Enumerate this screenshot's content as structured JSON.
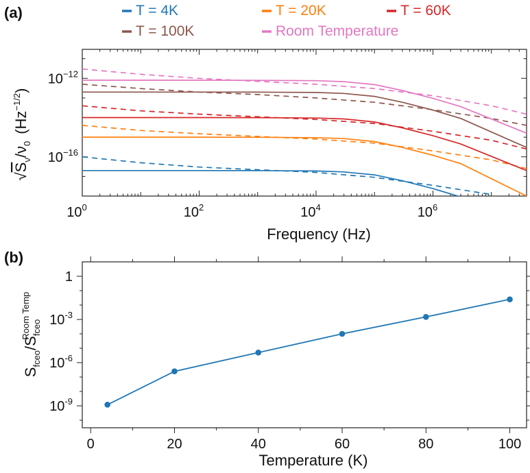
{
  "chart_data": [
    {
      "panel_label": "(a)",
      "type": "line",
      "xscale": "log",
      "yscale": "log",
      "xlim": [
        1,
        40000000
      ],
      "ylim": [
        1e-18,
        3e-11
      ],
      "xticks": [
        1,
        100,
        10000,
        1000000
      ],
      "xtick_labels": [
        {
          "base": "10",
          "exp": "0"
        },
        {
          "base": "10",
          "exp": "2"
        },
        {
          "base": "10",
          "exp": "4"
        },
        {
          "base": "10",
          "exp": "6"
        }
      ],
      "yticks": [
        1e-16,
        1e-12
      ],
      "ytick_labels": [
        {
          "base": "10",
          "exp": "−16"
        },
        {
          "base": "10",
          "exp": "−12"
        }
      ],
      "xlabel": "Frequency (Hz)",
      "ylabel": {
        "prefix": "√",
        "s": "S",
        "s_sub": "ν",
        "slash": "/ν",
        "nu_sub": "0",
        "unit": "(Hz",
        "unit_exp": "−1/2",
        "unit_close": ")"
      },
      "legend_placement": "top",
      "legend": [
        {
          "label": "T = 4K",
          "color": "#1f77b4"
        },
        {
          "label": "T = 20K",
          "color": "#ff7f0e"
        },
        {
          "label": "T = 60K",
          "color": "#d62728"
        },
        {
          "label": "T = 100K",
          "color": "#8c564b"
        },
        {
          "label": "Room Temperature",
          "color": "#e377c2"
        }
      ],
      "series": [
        {
          "color": "#1f77b4",
          "style": "solid",
          "x": [
            1,
            10,
            100,
            1000,
            10000,
            30000,
            100000,
            300000,
            1000000,
            3000000,
            10000000
          ],
          "y": [
            2e-17,
            2e-17,
            2e-17,
            1.98e-17,
            1.9e-17,
            1.7e-17,
            1.2e-17,
            6e-18,
            2.4e-18,
            9e-19,
            3e-19
          ]
        },
        {
          "color": "#1f77b4",
          "style": "dashed",
          "x": [
            1,
            10,
            100,
            1000,
            10000,
            100000,
            1000000,
            10000000
          ],
          "y": [
            1e-16,
            5e-17,
            3e-17,
            2.2e-17,
            1.6e-17,
            9e-18,
            3.5e-18,
            1.2e-18
          ]
        },
        {
          "color": "#ff7f0e",
          "style": "solid",
          "x": [
            1,
            10,
            100,
            1000,
            10000,
            30000,
            100000,
            300000,
            1000000,
            3000000,
            40000000
          ],
          "y": [
            1e-15,
            1e-15,
            1e-15,
            9.9e-16,
            9.5e-16,
            8.5e-16,
            6e-16,
            3e-16,
            1.2e-16,
            4.5e-17,
            1e-18
          ]
        },
        {
          "color": "#ff7f0e",
          "style": "dashed",
          "x": [
            1,
            10,
            100,
            1000,
            10000,
            100000,
            1000000,
            10000000,
            40000000
          ],
          "y": [
            4e-15,
            2.2e-15,
            1.5e-15,
            1.1e-15,
            8e-16,
            5e-16,
            2e-16,
            7e-17,
            2.5e-17
          ]
        },
        {
          "color": "#d62728",
          "style": "solid",
          "x": [
            1,
            10,
            100,
            1000,
            10000,
            30000,
            100000,
            300000,
            1000000,
            3000000,
            40000000
          ],
          "y": [
            1e-14,
            1e-14,
            1e-14,
            9.9e-15,
            9.5e-15,
            8.5e-15,
            6e-15,
            3e-15,
            1.2e-15,
            4.5e-16,
            2e-17
          ]
        },
        {
          "color": "#d62728",
          "style": "dashed",
          "x": [
            1,
            10,
            100,
            1000,
            10000,
            100000,
            1000000,
            10000000,
            40000000
          ],
          "y": [
            4e-14,
            2.2e-14,
            1.5e-14,
            1.1e-14,
            8e-15,
            5e-15,
            2e-15,
            7e-16,
            2.5e-16
          ]
        },
        {
          "color": "#8c564b",
          "style": "solid",
          "x": [
            1,
            10,
            100,
            1000,
            10000,
            30000,
            100000,
            300000,
            1000000,
            3000000,
            40000000
          ],
          "y": [
            2e-13,
            2e-13,
            2e-13,
            1.98e-13,
            1.9e-13,
            1.7e-13,
            1.2e-13,
            6e-14,
            2.4e-14,
            9e-15,
            3e-16
          ]
        },
        {
          "color": "#8c564b",
          "style": "dashed",
          "x": [
            1,
            10,
            100,
            1000,
            10000,
            100000,
            1000000,
            10000000,
            40000000
          ],
          "y": [
            5e-13,
            3e-13,
            2e-13,
            1.5e-13,
            1e-13,
            6e-14,
            2.5e-14,
            9e-15,
            4e-15
          ]
        },
        {
          "color": "#e377c2",
          "style": "solid",
          "x": [
            1,
            10,
            100,
            1000,
            10000,
            30000,
            100000,
            300000,
            1000000,
            3000000,
            40000000
          ],
          "y": [
            8e-13,
            8e-13,
            8e-13,
            7.9e-13,
            7.6e-13,
            6.8e-13,
            4.8e-13,
            2.4e-13,
            9.6e-14,
            3.6e-14,
            1.6e-15
          ]
        },
        {
          "color": "#e377c2",
          "style": "dashed",
          "x": [
            1,
            10,
            100,
            1000,
            10000,
            100000,
            1000000,
            10000000,
            40000000
          ],
          "y": [
            3e-12,
            1.6e-12,
            1e-12,
            7e-13,
            5e-13,
            3e-13,
            1.3e-13,
            4e-14,
            1.5e-14
          ]
        }
      ]
    },
    {
      "panel_label": "(b)",
      "type": "line",
      "yscale": "log",
      "xlim": [
        -2,
        104
      ],
      "ylim": [
        3e-11,
        10
      ],
      "xticks": [
        0,
        20,
        40,
        60,
        80,
        100
      ],
      "yticks": [
        1e-09,
        1e-06,
        0.001,
        1
      ],
      "ytick_labels": [
        {
          "base": "10",
          "exp": "-9"
        },
        {
          "base": "10",
          "exp": "-6"
        },
        {
          "base": "10",
          "exp": "-3"
        },
        {
          "base": "1",
          "exp": ""
        }
      ],
      "xlabel": "Temperature (K)",
      "ylabel": {
        "s": "S",
        "sub1": "fceo",
        "slash": "/S",
        "sub2": "fceo",
        "sup2": "Room Temp"
      },
      "series": [
        {
          "color": "#1f77b4",
          "x": [
            4,
            20,
            40,
            60,
            80,
            100
          ],
          "y": [
            1.2e-09,
            2.5e-07,
            5e-06,
            0.0001,
            0.0015,
            0.025
          ]
        }
      ]
    }
  ]
}
